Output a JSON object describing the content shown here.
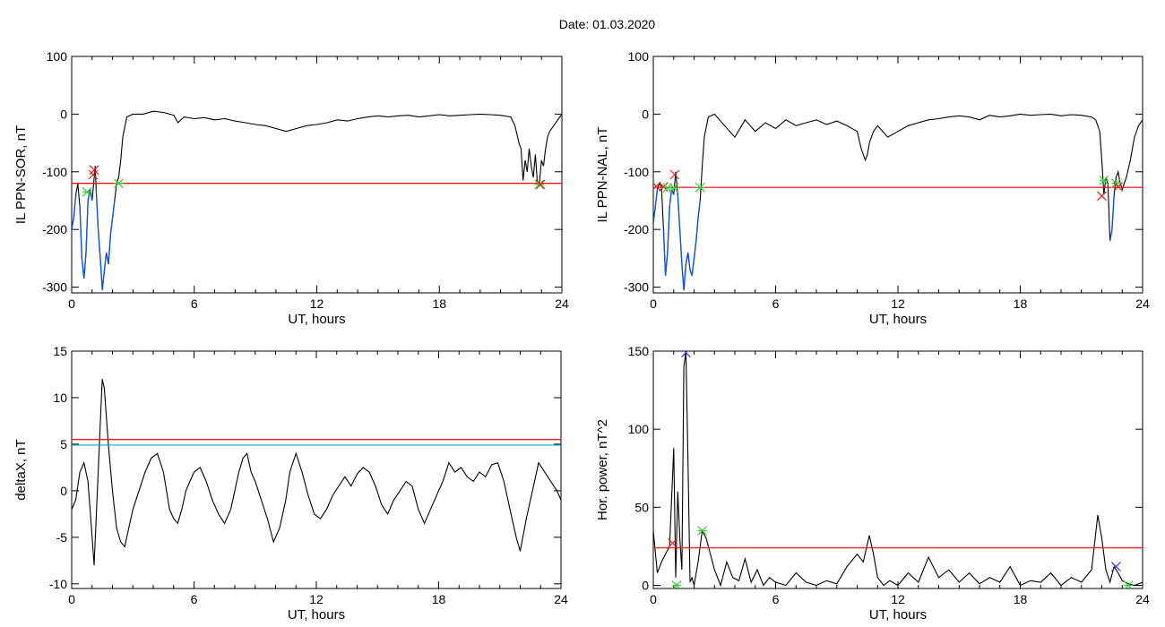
{
  "header": {
    "date_label": "Date:  01.03.2020"
  },
  "colors": {
    "trace": "#000000",
    "threshold": "#ff0000",
    "aux_threshold": "#00aacc",
    "below": "#1155dd",
    "cross_up": "#33cc33",
    "cross_down": "#dd2222",
    "peak": "#3333dd"
  },
  "chart_data": [
    {
      "type": "line",
      "id": "p1",
      "ylabel": "IL PPN-SOR, nT",
      "xlabel": "UT, hours",
      "xlim": [
        0,
        24
      ],
      "ylim": [
        -310,
        100
      ],
      "xticks": [
        0,
        6,
        12,
        18,
        24
      ],
      "yticks": [
        -300,
        -200,
        -100,
        0,
        100
      ],
      "threshold": -120,
      "series": [
        {
          "x": [
            0,
            0.1,
            0.2,
            0.3,
            0.4,
            0.5,
            0.6,
            0.7,
            0.8,
            0.9,
            1.0,
            1.1,
            1.15,
            1.2,
            1.3,
            1.4,
            1.5,
            1.6,
            1.7,
            1.8,
            1.9,
            2.0,
            2.1,
            2.2,
            2.3,
            2.4,
            2.5,
            2.7,
            3.0,
            3.5,
            4.0,
            4.5,
            5.0,
            5.2,
            5.5,
            6.0,
            6.5,
            7.0,
            7.5,
            8.0,
            8.5,
            9.0,
            9.5,
            10.0,
            10.5,
            11.0,
            11.5,
            12.0,
            12.5,
            13.0,
            13.5,
            14.0,
            14.5,
            15.0,
            15.5,
            16.0,
            16.5,
            17.0,
            17.5,
            18.0,
            18.5,
            19.0,
            19.5,
            20.0,
            20.5,
            21.0,
            21.5,
            21.7,
            21.9,
            22.0,
            22.1,
            22.2,
            22.3,
            22.4,
            22.5,
            22.6,
            22.7,
            22.8,
            22.9,
            23.0,
            23.1,
            23.2,
            23.3,
            23.4,
            23.6,
            23.8,
            24.0
          ],
          "y": [
            -200,
            -180,
            -140,
            -120,
            -160,
            -250,
            -285,
            -240,
            -150,
            -130,
            -150,
            -110,
            -90,
            -130,
            -200,
            -250,
            -305,
            -270,
            -240,
            -260,
            -210,
            -180,
            -150,
            -120,
            -110,
            -80,
            -40,
            -5,
            0,
            0,
            5,
            3,
            -2,
            -15,
            -5,
            -8,
            -6,
            -10,
            -8,
            -12,
            -15,
            -18,
            -20,
            -25,
            -30,
            -25,
            -20,
            -18,
            -15,
            -10,
            -12,
            -8,
            -5,
            -3,
            -5,
            -3,
            -2,
            -5,
            -3,
            -1,
            -3,
            -2,
            -1,
            0,
            -1,
            -2,
            -5,
            -20,
            -50,
            -60,
            -115,
            -80,
            -100,
            -60,
            -90,
            -110,
            -70,
            -120,
            -120,
            -80,
            -90,
            -60,
            -40,
            -30,
            -20,
            -10,
            0
          ]
        }
      ],
      "markers": [
        {
          "x": 0.75,
          "y": -135,
          "kind": "cross_up"
        },
        {
          "x": 1.05,
          "y": -105,
          "kind": "cross_down"
        },
        {
          "x": 1.1,
          "y": -97,
          "kind": "cross_down"
        },
        {
          "x": 2.3,
          "y": -120,
          "kind": "cross_up"
        },
        {
          "x": 22.9,
          "y": -122,
          "kind": "cross_up"
        },
        {
          "x": 22.95,
          "y": -122,
          "kind": "cross_down"
        }
      ]
    },
    {
      "type": "line",
      "id": "p2",
      "ylabel": "IL PPN-NAL, nT",
      "xlabel": "UT, hours",
      "xlim": [
        0,
        24
      ],
      "ylim": [
        -310,
        100
      ],
      "xticks": [
        0,
        6,
        12,
        18,
        24
      ],
      "yticks": [
        -300,
        -200,
        -100,
        0,
        100
      ],
      "threshold": -127,
      "series": [
        {
          "x": [
            0,
            0.1,
            0.2,
            0.3,
            0.4,
            0.5,
            0.6,
            0.7,
            0.8,
            0.9,
            1.0,
            1.1,
            1.2,
            1.3,
            1.4,
            1.5,
            1.6,
            1.7,
            1.8,
            1.9,
            2.0,
            2.1,
            2.2,
            2.3,
            2.4,
            2.5,
            2.7,
            3.0,
            3.5,
            4.0,
            4.5,
            5.0,
            5.5,
            6.0,
            6.5,
            7.0,
            7.5,
            8.0,
            8.5,
            9.0,
            9.5,
            10.0,
            10.2,
            10.4,
            10.5,
            10.6,
            10.8,
            11.0,
            11.5,
            12.0,
            12.5,
            13.0,
            13.5,
            14.0,
            14.5,
            15.0,
            15.5,
            16.0,
            16.5,
            17.0,
            17.5,
            18.0,
            18.5,
            19.0,
            19.5,
            20.0,
            20.5,
            21.0,
            21.5,
            21.7,
            21.9,
            22.0,
            22.1,
            22.2,
            22.3,
            22.4,
            22.5,
            22.6,
            22.7,
            22.8,
            22.9,
            23.0,
            23.2,
            23.4,
            23.6,
            23.8,
            24.0
          ],
          "y": [
            -190,
            -160,
            -130,
            -120,
            -125,
            -200,
            -280,
            -240,
            -160,
            -130,
            -140,
            -100,
            -140,
            -200,
            -260,
            -305,
            -260,
            -240,
            -270,
            -280,
            -250,
            -220,
            -180,
            -150,
            -90,
            -40,
            -5,
            0,
            -20,
            -40,
            -10,
            -30,
            -15,
            -25,
            -10,
            -20,
            -15,
            -10,
            -18,
            -12,
            -20,
            -30,
            -60,
            -80,
            -70,
            -50,
            -30,
            -20,
            -40,
            -30,
            -20,
            -15,
            -10,
            -8,
            -5,
            -3,
            -5,
            -10,
            -2,
            -5,
            -3,
            0,
            -2,
            -1,
            0,
            -3,
            -1,
            -2,
            -5,
            -10,
            -30,
            -80,
            -140,
            -110,
            -120,
            -220,
            -200,
            -140,
            -110,
            -100,
            -120,
            -130,
            -110,
            -80,
            -40,
            -20,
            -10
          ]
        }
      ],
      "markers": [
        {
          "x": 0.15,
          "y": -125,
          "kind": "cross_down"
        },
        {
          "x": 0.5,
          "y": -126,
          "kind": "cross_down"
        },
        {
          "x": 0.7,
          "y": -128,
          "kind": "cross_up"
        },
        {
          "x": 1.0,
          "y": -128,
          "kind": "cross_up"
        },
        {
          "x": 1.05,
          "y": -105,
          "kind": "cross_down"
        },
        {
          "x": 2.3,
          "y": -127,
          "kind": "cross_up"
        },
        {
          "x": 22.0,
          "y": -142,
          "kind": "cross_down"
        },
        {
          "x": 22.1,
          "y": -115,
          "kind": "cross_up"
        },
        {
          "x": 22.7,
          "y": -120,
          "kind": "cross_up"
        },
        {
          "x": 22.8,
          "y": -126,
          "kind": "cross_down"
        }
      ]
    },
    {
      "type": "line",
      "id": "p3",
      "ylabel": "deltaX, nT",
      "xlabel": "UT, hours",
      "xlim": [
        0,
        24
      ],
      "ylim": [
        -10.5,
        15
      ],
      "xticks": [
        0,
        6,
        12,
        18,
        24
      ],
      "yticks": [
        -10,
        -5,
        0,
        5,
        10,
        15
      ],
      "threshold": 5.5,
      "threshold2": 4.9,
      "series": [
        {
          "x": [
            0,
            0.2,
            0.4,
            0.6,
            0.8,
            1.0,
            1.1,
            1.2,
            1.4,
            1.5,
            1.6,
            1.8,
            2.0,
            2.2,
            2.4,
            2.6,
            2.8,
            3.0,
            3.3,
            3.6,
            3.9,
            4.2,
            4.5,
            4.8,
            5.0,
            5.2,
            5.4,
            5.6,
            5.8,
            6.0,
            6.3,
            6.6,
            6.9,
            7.2,
            7.5,
            7.8,
            8.0,
            8.2,
            8.4,
            8.6,
            8.8,
            9.0,
            9.3,
            9.6,
            9.9,
            10.2,
            10.5,
            10.7,
            11.0,
            11.3,
            11.6,
            11.9,
            12.2,
            12.5,
            12.8,
            13.1,
            13.4,
            13.7,
            14.0,
            14.3,
            14.6,
            14.9,
            15.2,
            15.5,
            15.8,
            16.1,
            16.4,
            16.7,
            17.0,
            17.3,
            17.6,
            17.9,
            18.2,
            18.5,
            18.8,
            19.1,
            19.4,
            19.7,
            20.0,
            20.3,
            20.6,
            20.9,
            21.2,
            21.5,
            21.8,
            22.0,
            22.3,
            22.6,
            22.9,
            23.2,
            23.5,
            23.8,
            24.0
          ],
          "y": [
            -2,
            -1,
            2,
            3,
            1,
            -5,
            -8,
            -3,
            7,
            12,
            11,
            5,
            0,
            -4,
            -5.5,
            -6,
            -4,
            -2,
            0,
            2,
            3.5,
            4,
            2,
            -2,
            -3,
            -3.5,
            -2,
            0,
            1,
            2,
            2.5,
            1,
            -1,
            -2.5,
            -3.5,
            -2,
            0,
            2,
            3.5,
            4,
            2,
            1,
            -1,
            -3,
            -5.5,
            -4,
            -1,
            2,
            4,
            2,
            -0.5,
            -2.5,
            -3,
            -2,
            -0.5,
            0.5,
            1.5,
            0.5,
            1.8,
            2.5,
            2,
            0.5,
            -1.5,
            -2.5,
            -1,
            0,
            1,
            0.5,
            -2,
            -3.5,
            -2,
            -0.5,
            1,
            3,
            2,
            2.5,
            1.5,
            1,
            2,
            1.5,
            2.8,
            3,
            1,
            -2,
            -5,
            -6.5,
            -3,
            0,
            3,
            2,
            1,
            0,
            -1
          ]
        }
      ],
      "markers": []
    },
    {
      "type": "line",
      "id": "p4",
      "ylabel": "Hor. power, nT^2",
      "xlabel": "UT, hours",
      "xlim": [
        0,
        24
      ],
      "ylim": [
        -2,
        150
      ],
      "xticks": [
        0,
        6,
        12,
        18,
        24
      ],
      "yticks": [
        0,
        50,
        100,
        150
      ],
      "threshold": 24,
      "series": [
        {
          "x": [
            0,
            0.2,
            0.4,
            0.6,
            0.8,
            1.0,
            1.1,
            1.2,
            1.3,
            1.4,
            1.5,
            1.6,
            1.7,
            1.8,
            1.9,
            2.0,
            2.2,
            2.4,
            2.6,
            2.8,
            3.0,
            3.3,
            3.6,
            3.9,
            4.2,
            4.5,
            4.8,
            5.1,
            5.4,
            5.7,
            6.0,
            6.5,
            7.0,
            7.5,
            8.0,
            8.5,
            9.0,
            9.5,
            10.0,
            10.3,
            10.6,
            10.8,
            11.0,
            11.3,
            11.6,
            12.0,
            12.5,
            13.0,
            13.5,
            14.0,
            14.5,
            15.0,
            15.5,
            16.0,
            16.5,
            17.0,
            17.5,
            18.0,
            18.5,
            19.0,
            19.5,
            20.0,
            20.5,
            21.0,
            21.5,
            21.8,
            22.0,
            22.2,
            22.4,
            22.6,
            22.8,
            23.0,
            23.3,
            23.6,
            24.0
          ],
          "y": [
            35,
            8,
            15,
            20,
            25,
            88,
            5,
            60,
            30,
            10,
            140,
            150,
            80,
            2,
            5,
            0,
            15,
            35,
            30,
            20,
            10,
            0,
            15,
            5,
            3,
            17,
            2,
            10,
            0,
            5,
            2,
            0,
            8,
            2,
            0,
            3,
            1,
            12,
            20,
            15,
            32,
            20,
            5,
            0,
            3,
            0,
            8,
            2,
            18,
            5,
            10,
            2,
            8,
            1,
            5,
            2,
            12,
            0,
            3,
            2,
            8,
            0,
            5,
            2,
            10,
            45,
            30,
            10,
            2,
            12,
            8,
            3,
            1,
            0,
            2
          ]
        }
      ],
      "markers": [
        {
          "x": 0.95,
          "y": 27,
          "kind": "cross_down"
        },
        {
          "x": 1.15,
          "y": 0,
          "kind": "cross_up"
        },
        {
          "x": 2.4,
          "y": 35,
          "kind": "cross_up"
        },
        {
          "x": 1.6,
          "y": 149,
          "kind": "peak"
        },
        {
          "x": 22.7,
          "y": 12,
          "kind": "peak"
        },
        {
          "x": 23.3,
          "y": 0,
          "kind": "cross_up"
        }
      ]
    }
  ]
}
